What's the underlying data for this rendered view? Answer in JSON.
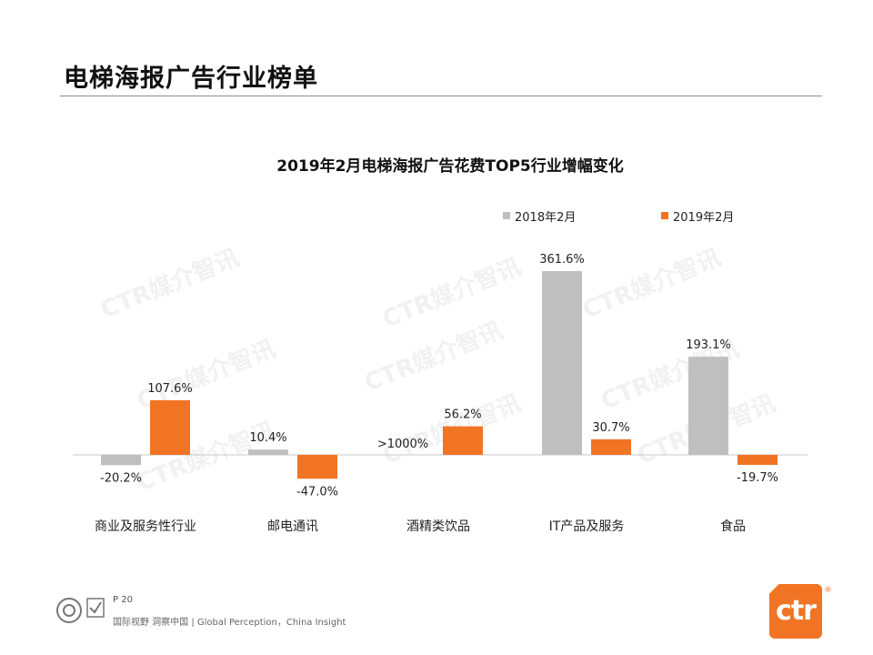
{
  "header": {
    "title": "电梯海报广告行业榜单"
  },
  "chart_data": {
    "type": "bar",
    "title": "2019年2月电梯海报广告花费TOP5行业增幅变化",
    "categories": [
      "商业及服务性行业",
      "邮电通讯",
      "酒精类饮品",
      "IT产品及服务",
      "食品"
    ],
    "series": [
      {
        "name": "2018年2月",
        "color": "#bfbfbf",
        "values": [
          -20.2,
          10.4,
          null,
          361.6,
          193.1
        ],
        "labels": [
          "-20.2%",
          "10.4%",
          ">1000%",
          "361.6%",
          "193.1%"
        ]
      },
      {
        "name": "2019年2月",
        "color": "#f07424",
        "values": [
          107.6,
          -47.0,
          56.2,
          30.7,
          -19.7
        ],
        "labels": [
          "107.6%",
          "-47.0%",
          "56.2%",
          "30.7%",
          "-19.7%"
        ]
      }
    ],
    "legend": "top-right",
    "grid": false
  },
  "watermark": {
    "text": "CTR媒介智讯"
  },
  "footer": {
    "page": "P 20",
    "tagline": "国际视野 洞察中国 | Global Perception，China Insight",
    "logo_text": "ctr",
    "logo_mark": "®"
  }
}
